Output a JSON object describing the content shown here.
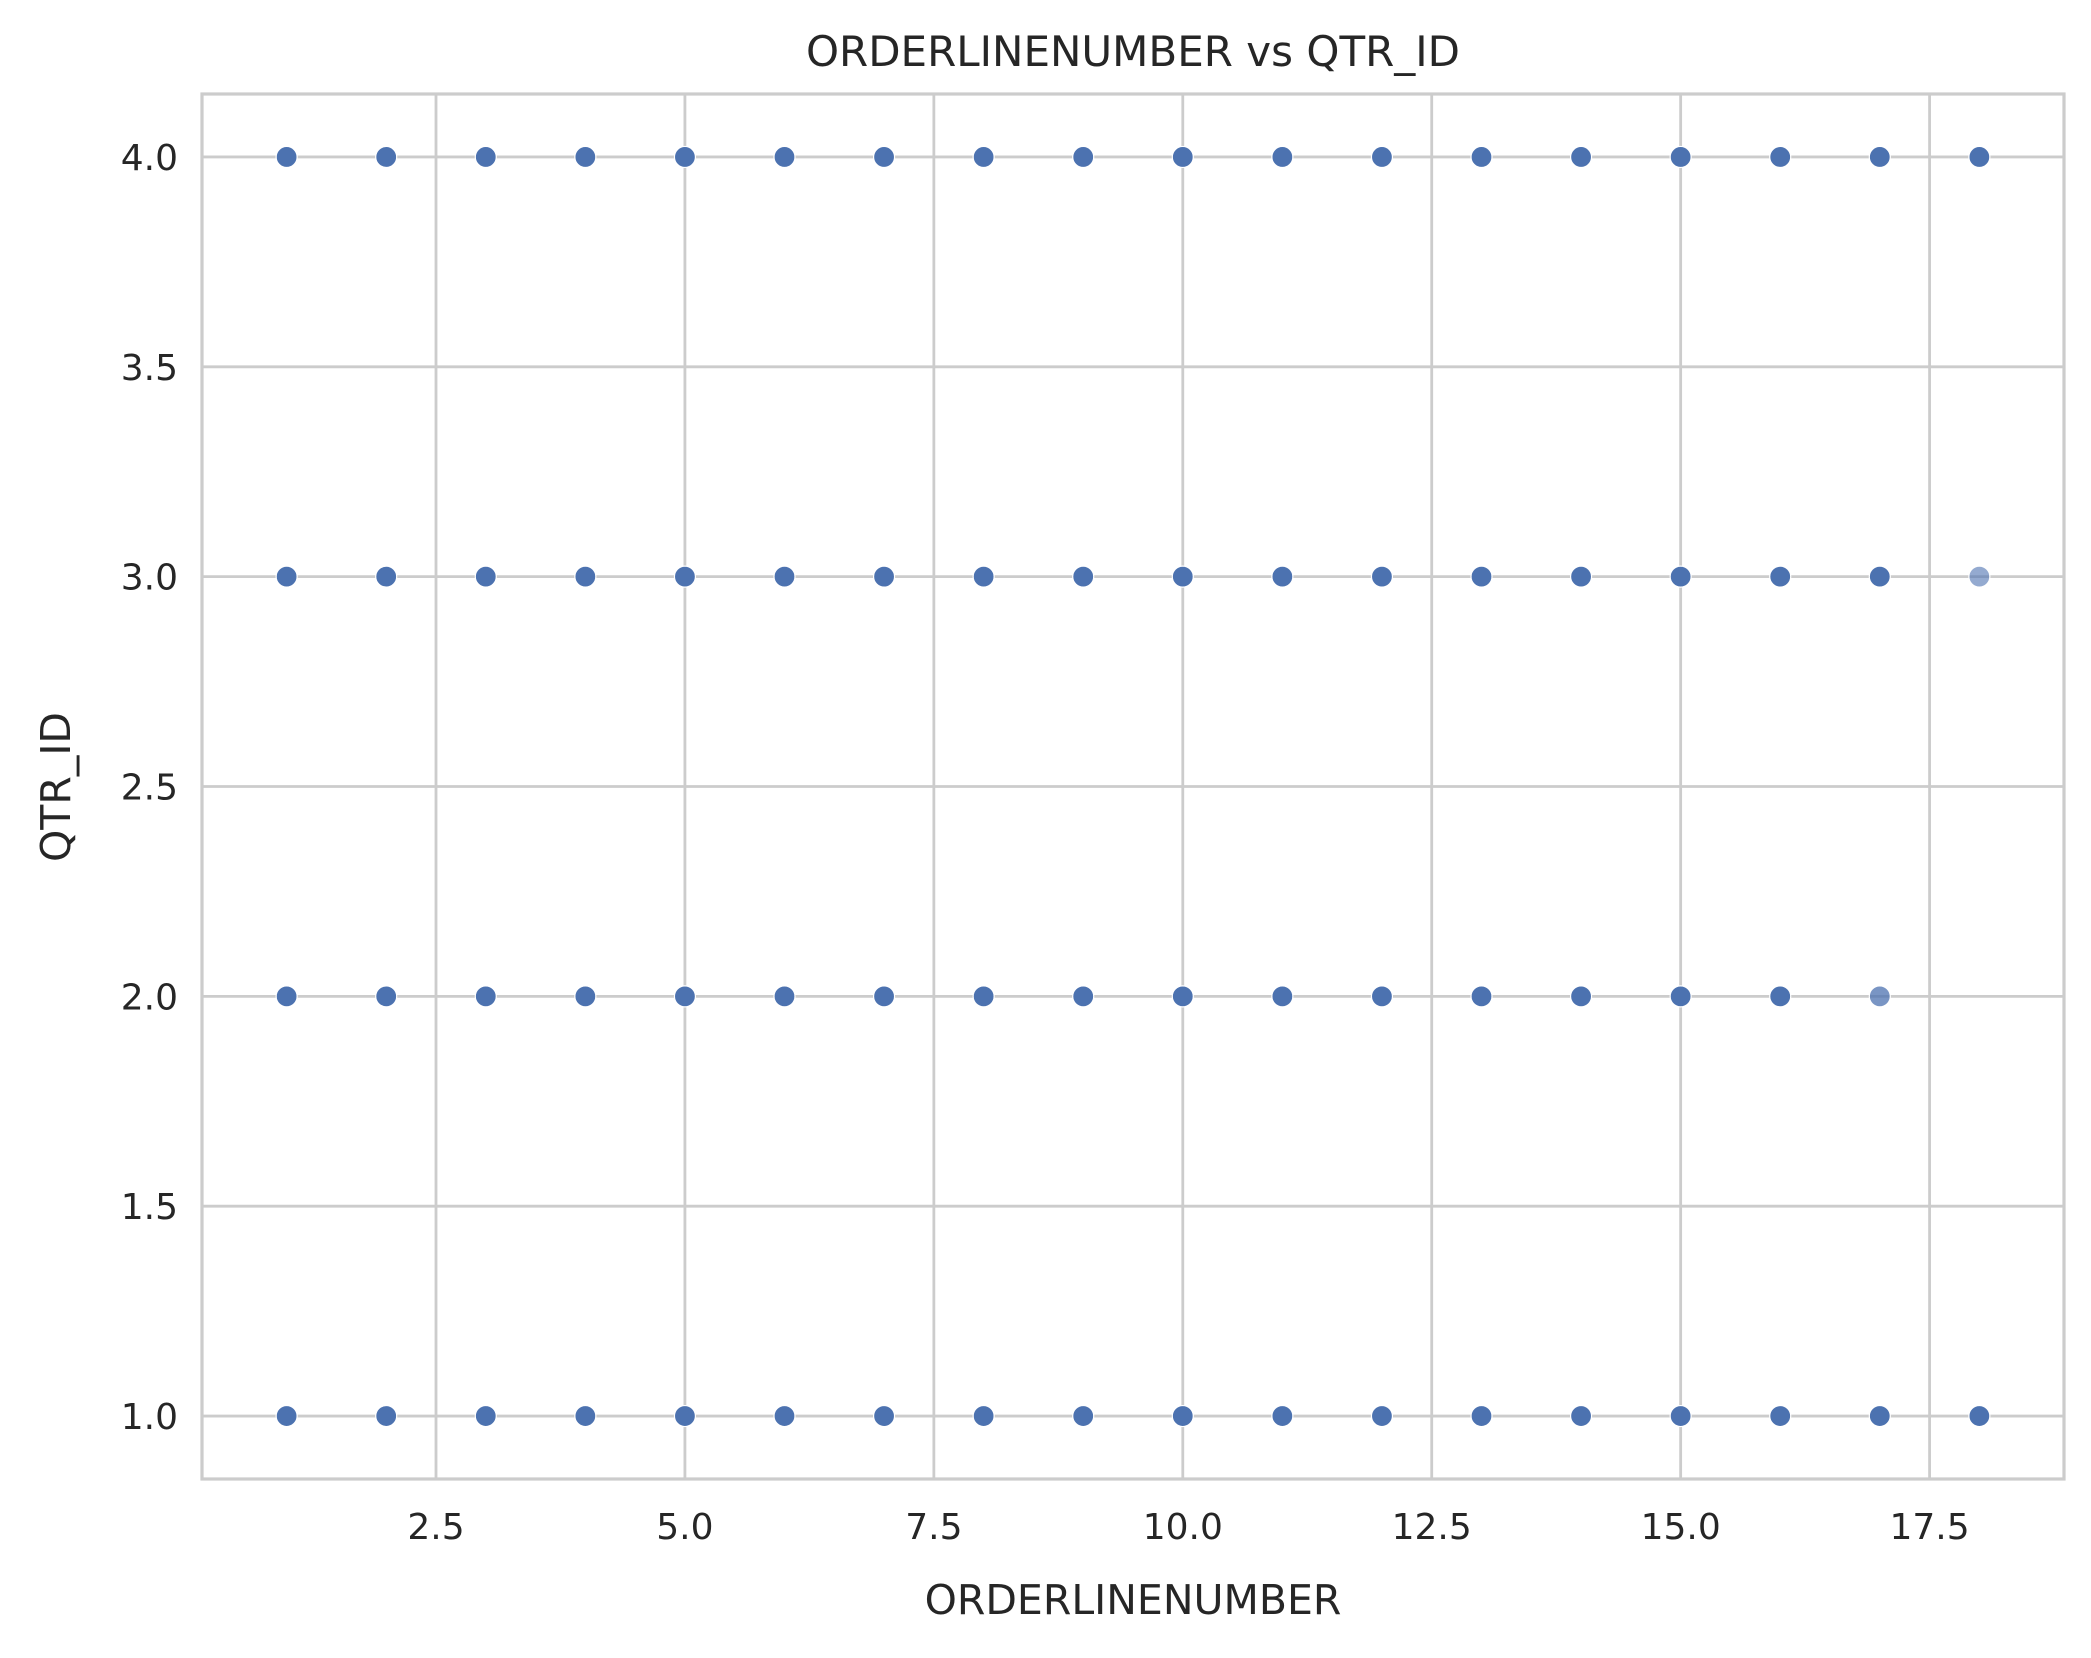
{
  "chart_data": {
    "type": "scatter",
    "title": "ORDERLINENUMBER vs QTR_ID",
    "xlabel": "ORDERLINENUMBER",
    "ylabel": "QTR_ID",
    "xlim": [
      0.15,
      18.85
    ],
    "ylim": [
      0.85,
      4.15
    ],
    "xticks": [
      2.5,
      5.0,
      7.5,
      10.0,
      12.5,
      15.0,
      17.5
    ],
    "xtick_labels": [
      "2.5",
      "5.0",
      "7.5",
      "10.0",
      "12.5",
      "15.0",
      "17.5"
    ],
    "yticks": [
      1.0,
      1.5,
      2.0,
      2.5,
      3.0,
      3.5,
      4.0
    ],
    "ytick_labels": [
      "1.0",
      "1.5",
      "2.0",
      "2.5",
      "3.0",
      "3.5",
      "4.0"
    ],
    "grid": true,
    "legend": "none",
    "marker_color": "#4c72b0",
    "points": [
      {
        "x": 1,
        "y": 1
      },
      {
        "x": 2,
        "y": 1
      },
      {
        "x": 3,
        "y": 1
      },
      {
        "x": 4,
        "y": 1
      },
      {
        "x": 5,
        "y": 1
      },
      {
        "x": 6,
        "y": 1
      },
      {
        "x": 7,
        "y": 1
      },
      {
        "x": 8,
        "y": 1
      },
      {
        "x": 9,
        "y": 1
      },
      {
        "x": 10,
        "y": 1
      },
      {
        "x": 11,
        "y": 1
      },
      {
        "x": 12,
        "y": 1
      },
      {
        "x": 13,
        "y": 1
      },
      {
        "x": 14,
        "y": 1
      },
      {
        "x": 15,
        "y": 1
      },
      {
        "x": 16,
        "y": 1
      },
      {
        "x": 17,
        "y": 1
      },
      {
        "x": 18,
        "y": 1
      },
      {
        "x": 1,
        "y": 2
      },
      {
        "x": 2,
        "y": 2
      },
      {
        "x": 3,
        "y": 2
      },
      {
        "x": 4,
        "y": 2
      },
      {
        "x": 5,
        "y": 2
      },
      {
        "x": 6,
        "y": 2
      },
      {
        "x": 7,
        "y": 2
      },
      {
        "x": 8,
        "y": 2
      },
      {
        "x": 9,
        "y": 2
      },
      {
        "x": 10,
        "y": 2
      },
      {
        "x": 11,
        "y": 2
      },
      {
        "x": 12,
        "y": 2
      },
      {
        "x": 13,
        "y": 2
      },
      {
        "x": 14,
        "y": 2
      },
      {
        "x": 15,
        "y": 2
      },
      {
        "x": 16,
        "y": 2
      },
      {
        "x": 17,
        "y": 2,
        "opacity": 0.75
      },
      {
        "x": 1,
        "y": 3
      },
      {
        "x": 2,
        "y": 3
      },
      {
        "x": 3,
        "y": 3
      },
      {
        "x": 4,
        "y": 3
      },
      {
        "x": 5,
        "y": 3
      },
      {
        "x": 6,
        "y": 3
      },
      {
        "x": 7,
        "y": 3
      },
      {
        "x": 8,
        "y": 3
      },
      {
        "x": 9,
        "y": 3
      },
      {
        "x": 10,
        "y": 3
      },
      {
        "x": 11,
        "y": 3
      },
      {
        "x": 12,
        "y": 3
      },
      {
        "x": 13,
        "y": 3
      },
      {
        "x": 14,
        "y": 3
      },
      {
        "x": 15,
        "y": 3
      },
      {
        "x": 16,
        "y": 3
      },
      {
        "x": 17,
        "y": 3
      },
      {
        "x": 18,
        "y": 3,
        "opacity": 0.6
      },
      {
        "x": 1,
        "y": 4
      },
      {
        "x": 2,
        "y": 4
      },
      {
        "x": 3,
        "y": 4
      },
      {
        "x": 4,
        "y": 4
      },
      {
        "x": 5,
        "y": 4
      },
      {
        "x": 6,
        "y": 4
      },
      {
        "x": 7,
        "y": 4
      },
      {
        "x": 8,
        "y": 4
      },
      {
        "x": 9,
        "y": 4
      },
      {
        "x": 10,
        "y": 4
      },
      {
        "x": 11,
        "y": 4
      },
      {
        "x": 12,
        "y": 4
      },
      {
        "x": 13,
        "y": 4
      },
      {
        "x": 14,
        "y": 4
      },
      {
        "x": 15,
        "y": 4
      },
      {
        "x": 16,
        "y": 4
      },
      {
        "x": 17,
        "y": 4
      },
      {
        "x": 18,
        "y": 4
      }
    ]
  }
}
